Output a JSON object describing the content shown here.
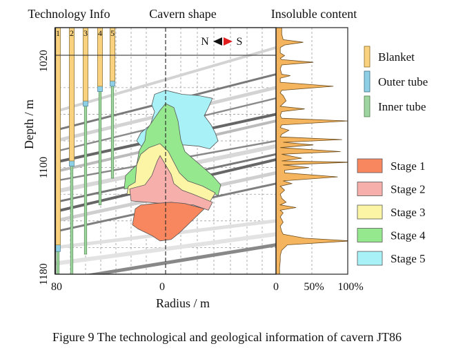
{
  "figure": {
    "caption": "Figure 9 The technological and geological information of cavern JT86"
  },
  "chart_data": {
    "type": "area",
    "panel_titles": [
      "Technology Info",
      "Cavern shape",
      "Insoluble content"
    ],
    "y_axis": {
      "label": "Depth / m",
      "ticks": [
        1020,
        1100,
        1180
      ],
      "range": [
        995,
        1180
      ],
      "inverted": true
    },
    "x_axis": {
      "label": "Radius / m",
      "ticks": [
        "80",
        "0"
      ]
    },
    "insoluble_axis": {
      "ticks": [
        "0",
        "50%",
        "100%"
      ],
      "range": [
        0,
        100
      ]
    },
    "compass": {
      "north": "N",
      "south": "S"
    },
    "wells": {
      "numbers": [
        "1",
        "2",
        "3",
        "4",
        "5"
      ],
      "legend": [
        "Blanket",
        "Outer tube",
        "Inner tube"
      ],
      "colors": {
        "blanket": "#FAD27F",
        "outer": "#8ECFE6",
        "inner": "#9FD59F"
      },
      "blanket_bottom": [
        1158,
        1095,
        1050,
        1039,
        1035
      ],
      "outer_bottom": [
        1163,
        1099,
        1054,
        1043,
        1039
      ],
      "inner_bottom": [
        1180,
        1183,
        1165,
        1128,
        1108
      ]
    },
    "stages": {
      "legend": [
        "Stage 1",
        "Stage 2",
        "Stage 3",
        "Stage 4",
        "Stage 5"
      ],
      "colors": [
        "#F8865F",
        "#F6AFAA",
        "#FBF5A5",
        "#95E88E",
        "#A8F1F6"
      ],
      "profiles": [
        [
          [
            -10,
            1151
          ],
          [
            -20,
            1146
          ],
          [
            -24,
            1143
          ],
          [
            -23,
            1137
          ],
          [
            -22,
            1131
          ],
          [
            -18,
            1128
          ],
          [
            -8,
            1127
          ],
          [
            4,
            1126
          ],
          [
            14,
            1127
          ],
          [
            28,
            1131
          ],
          [
            22,
            1137
          ],
          [
            16,
            1143
          ],
          [
            10,
            1149
          ],
          [
            4,
            1154
          ],
          [
            -4,
            1155
          ]
        ],
        [
          [
            -2,
            1127
          ],
          [
            -25,
            1125
          ],
          [
            -26,
            1116
          ],
          [
            -15,
            1113
          ],
          [
            -10,
            1106
          ],
          [
            -6,
            1095
          ],
          [
            -4,
            1091
          ],
          [
            0,
            1098
          ],
          [
            4,
            1105
          ],
          [
            6,
            1112
          ],
          [
            12,
            1117
          ],
          [
            20,
            1120
          ],
          [
            34,
            1126
          ],
          [
            31,
            1132
          ],
          [
            20,
            1128
          ],
          [
            8,
            1128
          ]
        ],
        [
          [
            -10,
            1121
          ],
          [
            -28,
            1120
          ],
          [
            -27,
            1114
          ],
          [
            -22,
            1111
          ],
          [
            -21,
            1098
          ],
          [
            -18,
            1090
          ],
          [
            -12,
            1085
          ],
          [
            -4,
            1082
          ],
          [
            2,
            1088
          ],
          [
            6,
            1096
          ],
          [
            10,
            1104
          ],
          [
            16,
            1110
          ],
          [
            27,
            1114
          ],
          [
            36,
            1119
          ],
          [
            32,
            1126
          ],
          [
            14,
            1124
          ],
          [
            0,
            1122
          ]
        ],
        [
          [
            -10,
            1113
          ],
          [
            -30,
            1116
          ],
          [
            -29,
            1106
          ],
          [
            -21,
            1098
          ],
          [
            -19,
            1087
          ],
          [
            -15,
            1080
          ],
          [
            -14,
            1072
          ],
          [
            -8,
            1063
          ],
          [
            -4,
            1057
          ],
          [
            0,
            1052
          ],
          [
            6,
            1055
          ],
          [
            9,
            1065
          ],
          [
            11,
            1079
          ],
          [
            14,
            1088
          ],
          [
            24,
            1097
          ],
          [
            34,
            1106
          ],
          [
            40,
            1113
          ],
          [
            38,
            1121
          ],
          [
            30,
            1117
          ],
          [
            14,
            1114
          ],
          [
            2,
            1113
          ]
        ],
        [
          [
            -6,
            1085
          ],
          [
            -16,
            1086
          ],
          [
            -21,
            1080
          ],
          [
            -18,
            1074
          ],
          [
            -11,
            1068
          ],
          [
            -8,
            1058
          ],
          [
            -10,
            1053
          ],
          [
            -8,
            1045
          ],
          [
            0,
            1042
          ],
          [
            12,
            1045
          ],
          [
            24,
            1046
          ],
          [
            34,
            1048
          ],
          [
            31,
            1055
          ],
          [
            28,
            1061
          ],
          [
            33,
            1068
          ],
          [
            36,
            1074
          ],
          [
            38,
            1080
          ],
          [
            32,
            1086
          ],
          [
            24,
            1084
          ],
          [
            13,
            1083
          ],
          [
            6,
            1086
          ],
          [
            2,
            1088
          ]
        ]
      ]
    },
    "insoluble_content": {
      "depth": [
        995,
        1000,
        1004,
        1006,
        1008,
        1010,
        1014,
        1016,
        1018,
        1019,
        1021,
        1023,
        1026,
        1030,
        1031,
        1033,
        1036,
        1039,
        1042,
        1044,
        1046,
        1050,
        1054,
        1056,
        1058,
        1061,
        1063,
        1065,
        1068,
        1070,
        1072,
        1075,
        1077,
        1079,
        1081,
        1083,
        1085,
        1088,
        1090,
        1093,
        1095,
        1096,
        1098,
        1100,
        1102,
        1104,
        1107,
        1110,
        1112,
        1114,
        1117,
        1120,
        1123,
        1126,
        1128,
        1130,
        1132,
        1134,
        1137,
        1139,
        1141,
        1144,
        1148,
        1150,
        1153,
        1155,
        1158,
        1162,
        1166,
        1170,
        1175,
        1180
      ],
      "percent": [
        8,
        8,
        10,
        38,
        12,
        6,
        6,
        12,
        6,
        8,
        52,
        8,
        6,
        8,
        20,
        6,
        6,
        80,
        8,
        6,
        10,
        14,
        6,
        40,
        8,
        6,
        8,
        100,
        8,
        6,
        18,
        8,
        6,
        92,
        10,
        52,
        6,
        90,
        8,
        36,
        8,
        104,
        10,
        46,
        12,
        12,
        86,
        10,
        22,
        6,
        12,
        6,
        8,
        14,
        6,
        28,
        6,
        10,
        6,
        8,
        10,
        6,
        8,
        10,
        40,
        104,
        16,
        8,
        6,
        6,
        5,
        5
      ]
    }
  }
}
